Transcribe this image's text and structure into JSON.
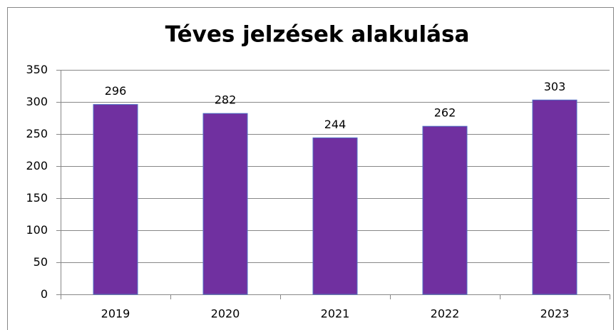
{
  "chart_data": {
    "type": "bar",
    "title": "Téves jelzések alakulása",
    "categories": [
      "2019",
      "2020",
      "2021",
      "2022",
      "2023"
    ],
    "values": [
      296,
      282,
      244,
      262,
      303
    ],
    "color": "#7030a0",
    "ylim": [
      0,
      350
    ],
    "yticks": [
      0,
      50,
      100,
      150,
      200,
      250,
      300,
      350
    ],
    "grid": true
  }
}
